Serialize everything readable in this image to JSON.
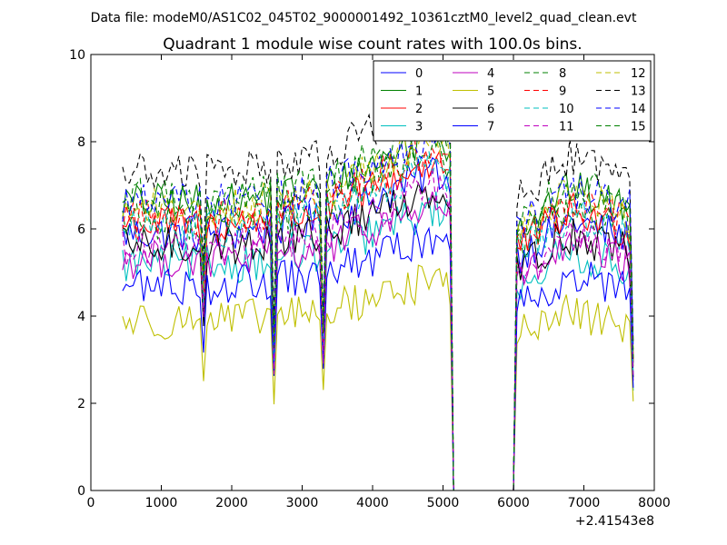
{
  "header": {
    "data_file_label": "Data file: modeM0/AS1C02_045T02_9000001492_10361cztM0_level2_quad_clean.evt"
  },
  "chart_data": {
    "type": "line",
    "title": "Quadrant 1 module wise count rates with 100.0s bins.",
    "xlabel": "",
    "ylabel": "",
    "xlim": [
      0,
      8000
    ],
    "ylim": [
      0,
      10
    ],
    "x_offset_label": "+2.41543e8",
    "x_ticks": [
      0,
      1000,
      2000,
      3000,
      4000,
      5000,
      6000,
      7000,
      8000
    ],
    "y_ticks": [
      0,
      2,
      4,
      6,
      8,
      10
    ],
    "grid": false,
    "legend_position": "top-right",
    "legend_columns": 4,
    "series": [
      {
        "name": "0",
        "color": "#0000ff",
        "style": "solid",
        "base": 5.9
      },
      {
        "name": "1",
        "color": "#008000",
        "style": "solid",
        "base": 6.6
      },
      {
        "name": "2",
        "color": "#ff0000",
        "style": "solid",
        "base": 6.1
      },
      {
        "name": "3",
        "color": "#00bfbf",
        "style": "solid",
        "base": 5.2
      },
      {
        "name": "4",
        "color": "#bf00bf",
        "style": "solid",
        "base": 5.3
      },
      {
        "name": "5",
        "color": "#bfbf00",
        "style": "solid",
        "base": 3.9
      },
      {
        "name": "6",
        "color": "#000000",
        "style": "solid",
        "base": 5.6
      },
      {
        "name": "7",
        "color": "#0000ff",
        "style": "solid",
        "base": 4.7
      },
      {
        "name": "8",
        "color": "#008000",
        "style": "dashed",
        "base": 6.2
      },
      {
        "name": "9",
        "color": "#ff0000",
        "style": "dashed",
        "base": 6.3
      },
      {
        "name": "10",
        "color": "#00bfbf",
        "style": "dashed",
        "base": 6.0
      },
      {
        "name": "11",
        "color": "#bf00bf",
        "style": "dashed",
        "base": 5.6
      },
      {
        "name": "12",
        "color": "#bfbf00",
        "style": "dashed",
        "base": 6.5
      },
      {
        "name": "13",
        "color": "#000000",
        "style": "dashed",
        "base": 7.3
      },
      {
        "name": "14",
        "color": "#0000ff",
        "style": "dashed",
        "base": 6.6
      },
      {
        "name": "15",
        "color": "#008000",
        "style": "dashed",
        "base": 6.7
      }
    ],
    "x_start": 450,
    "x_step": 50,
    "x_end": 7700,
    "dips": [
      {
        "x": 1600,
        "factor": 0.72
      },
      {
        "x": 2600,
        "factor": 0.5
      },
      {
        "x": 3300,
        "factor": 0.52
      }
    ],
    "gaps": [
      {
        "from": 5100,
        "to": 6050
      }
    ],
    "end_drop": {
      "x": 7700,
      "factor": 0.48
    },
    "trend_points": [
      [
        450,
        0.0
      ],
      [
        2000,
        0.0
      ],
      [
        3300,
        0.05
      ],
      [
        4700,
        0.22
      ],
      [
        4900,
        0.25
      ],
      [
        6100,
        -0.08
      ],
      [
        6800,
        0.05
      ],
      [
        7600,
        -0.02
      ]
    ]
  }
}
